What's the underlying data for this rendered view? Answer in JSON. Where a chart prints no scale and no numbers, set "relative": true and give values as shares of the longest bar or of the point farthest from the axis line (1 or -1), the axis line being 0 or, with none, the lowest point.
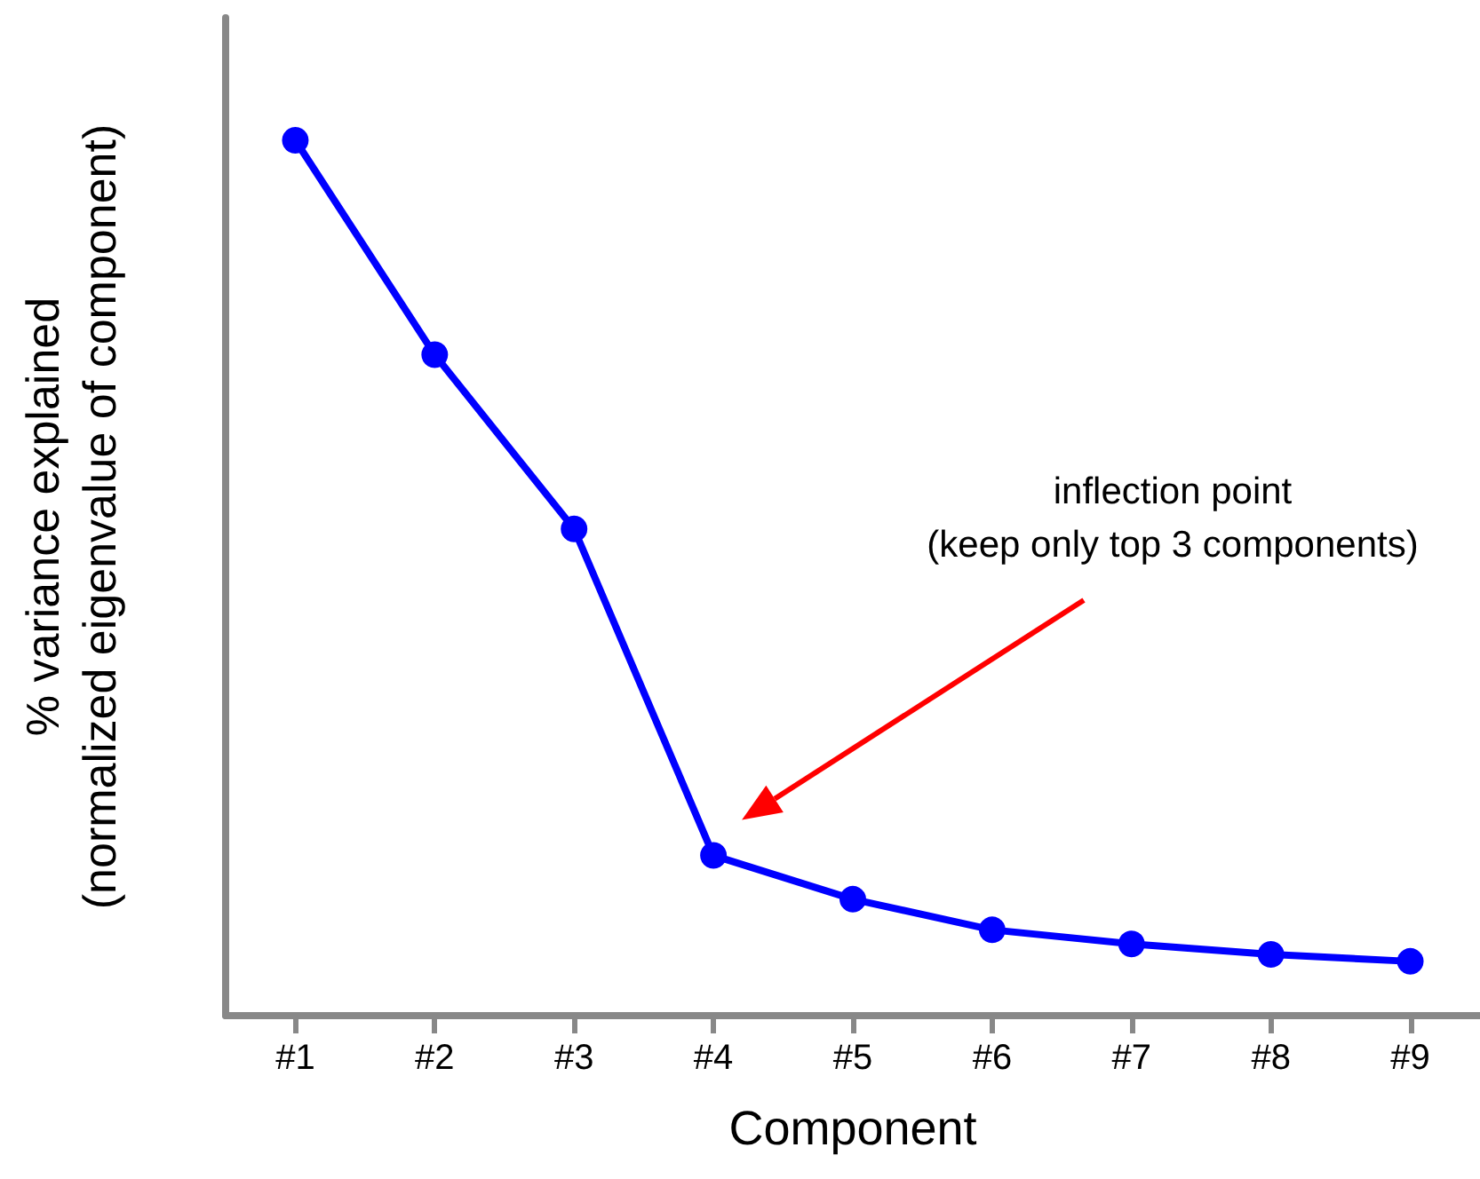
{
  "chart_data": {
    "type": "line",
    "xlabel": "Component",
    "ylabel": "% variance explained\n(normalized eigenvalue of component)",
    "categories": [
      "#1",
      "#2",
      "#3",
      "#4",
      "#5",
      "#6",
      "#7",
      "#8",
      "#9"
    ],
    "series": [
      {
        "color": "#0000ff",
        "values": [
          1,
          0.755,
          0.556,
          0.183,
          0.133,
          0.098,
          0.082,
          0.07,
          0.062
        ]
      }
    ],
    "relative": true,
    "marker": "circle",
    "annotations": [
      "inflection point\n(keep only top 3 components)"
    ]
  }
}
